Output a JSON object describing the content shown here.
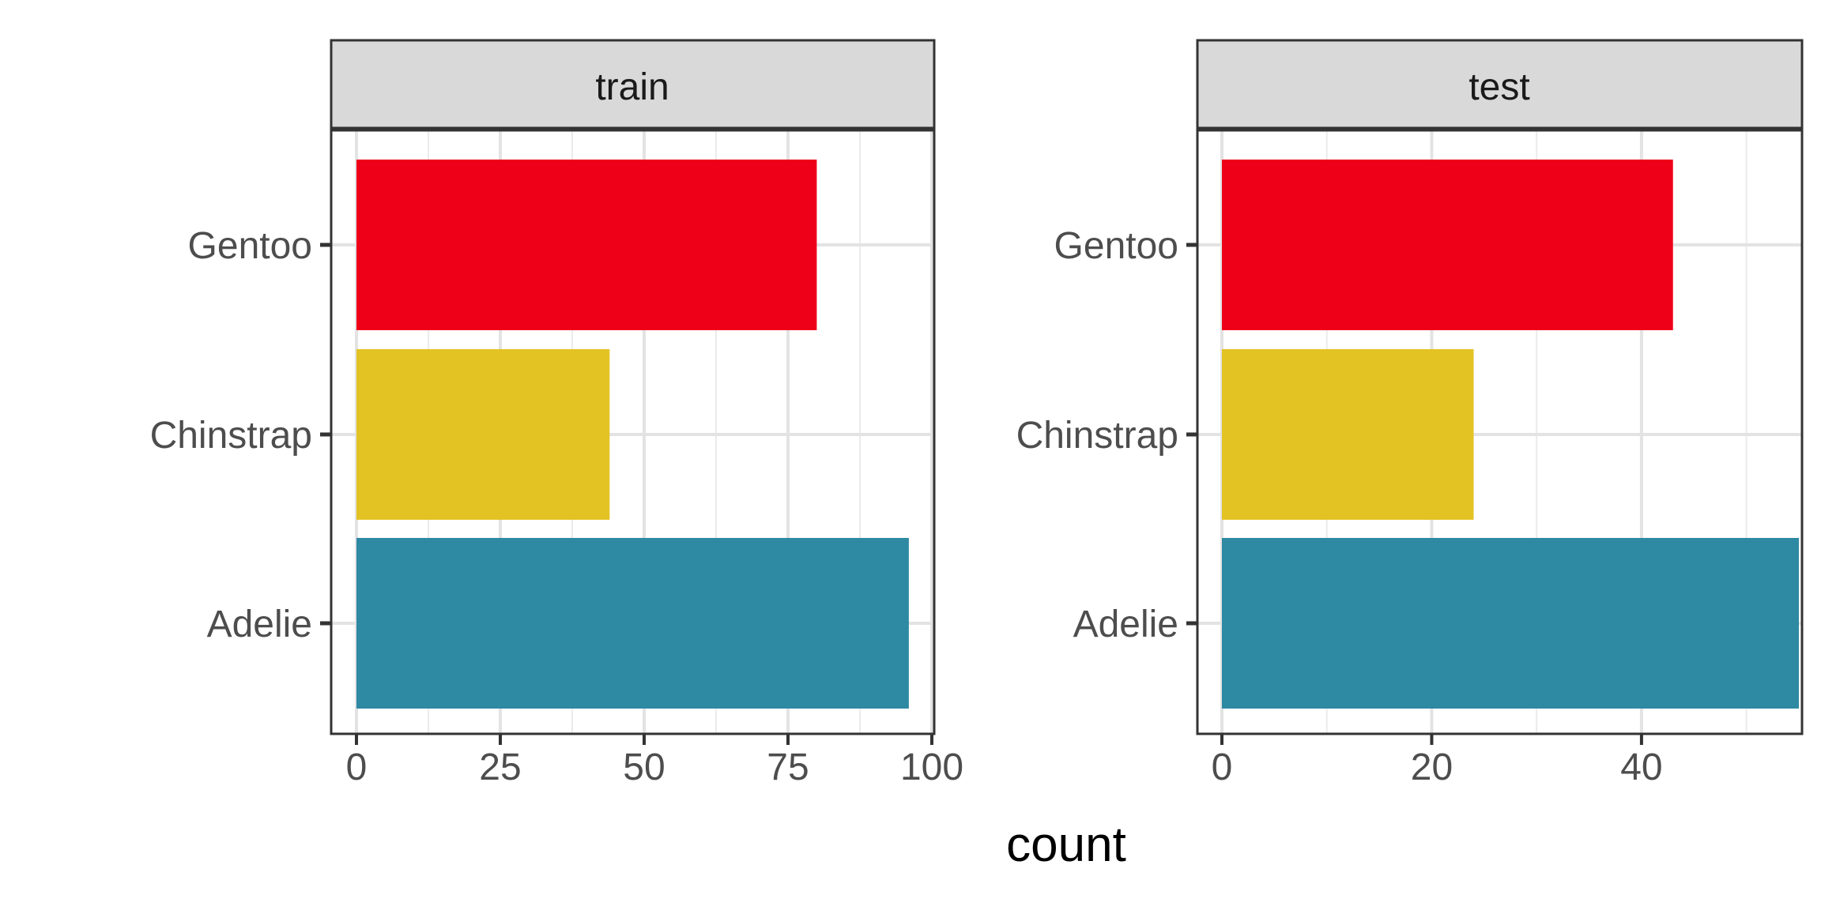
{
  "chart_data": {
    "type": "bar",
    "orientation": "horizontal",
    "xlabel": "count",
    "ylabel": "",
    "grid": true,
    "legend": "none",
    "categories": [
      "Adelie",
      "Chinstrap",
      "Gentoo"
    ],
    "colors": {
      "Adelie": "#2E89A3",
      "Chinstrap": "#E3C324",
      "Gentoo": "#EE0019"
    },
    "facets": [
      {
        "label": "train",
        "values": [
          96,
          44,
          80
        ],
        "xlim": [
          0,
          100
        ],
        "xticks": [
          0,
          25,
          50,
          75,
          100
        ],
        "xtick_labels": [
          "0",
          "25",
          "50",
          "75",
          "100"
        ]
      },
      {
        "label": "test",
        "values": [
          55,
          24,
          43
        ],
        "xlim": [
          0,
          55
        ],
        "xticks": [
          0,
          20,
          40
        ],
        "xtick_labels": [
          "0",
          "20",
          "40"
        ]
      }
    ]
  }
}
